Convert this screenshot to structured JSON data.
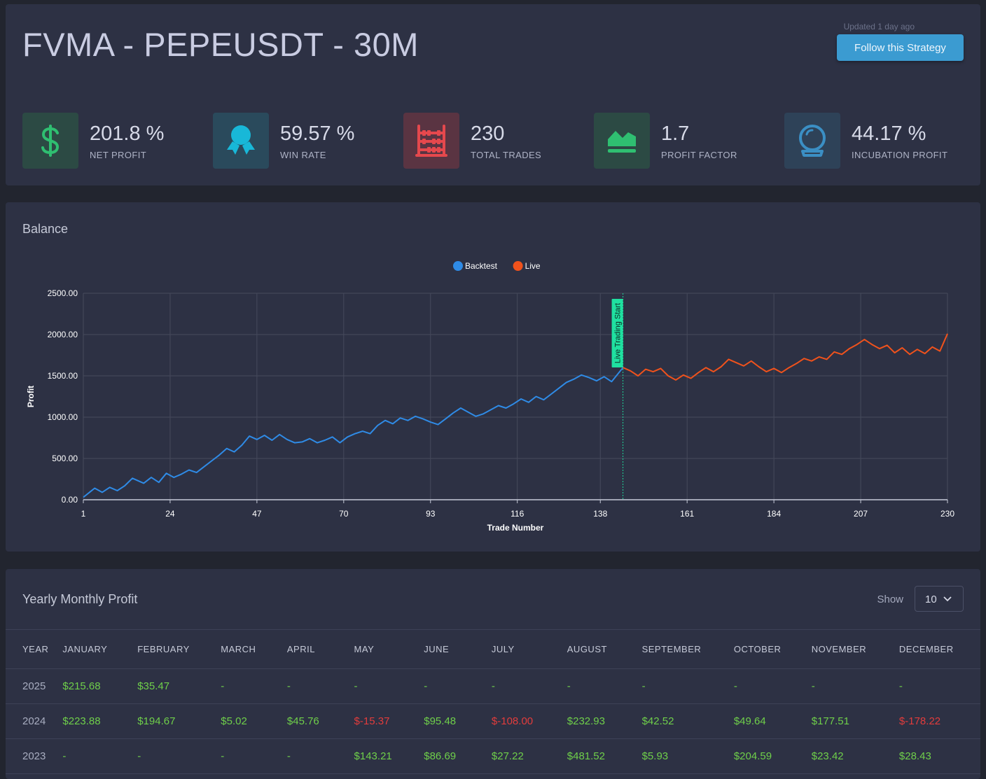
{
  "header": {
    "title": "FVMA - PEPEUSDT - 30M",
    "updated": "Updated 1 day ago",
    "follow_label": "Follow this Strategy"
  },
  "stats": [
    {
      "value": "201.8 %",
      "label": "NET PROFIT",
      "icon": "dollar-icon",
      "color": "#2fbf71",
      "bg": "#2c4a44"
    },
    {
      "value": "59.57 %",
      "label": "WIN RATE",
      "icon": "award-icon",
      "color": "#18b8d8",
      "bg": "#2a4a5c"
    },
    {
      "value": "230",
      "label": "TOTAL TRADES",
      "icon": "abacus-icon",
      "color": "#e5484d",
      "bg": "#5a3442"
    },
    {
      "value": "1.7",
      "label": "PROFIT FACTOR",
      "icon": "area-chart-icon",
      "color": "#2fbf71",
      "bg": "#2c4a44"
    },
    {
      "value": "44.17 %",
      "label": "INCUBATION PROFIT",
      "icon": "crystal-ball-icon",
      "color": "#3b8fc4",
      "bg": "#2e4258"
    }
  ],
  "balance": {
    "title": "Balance",
    "legend": [
      {
        "name": "Backtest",
        "color": "#2f8be6"
      },
      {
        "name": "Live",
        "color": "#f0521c"
      }
    ],
    "annotation": "Live Trading Start"
  },
  "chart_data": {
    "type": "line",
    "xlabel": "Trade Number",
    "ylabel": "Profit",
    "xlim": [
      1,
      230
    ],
    "ylim": [
      0,
      2500
    ],
    "x_ticks": [
      "1",
      "24",
      "47",
      "70",
      "93",
      "116",
      "138",
      "161",
      "184",
      "207",
      "230"
    ],
    "y_ticks": [
      "0.00",
      "500.00",
      "1000.00",
      "1500.00",
      "2000.00",
      "2500.00"
    ],
    "live_start_trade": 144,
    "series": [
      {
        "name": "Backtest",
        "color": "#2f8be6",
        "x": [
          1,
          4,
          6,
          8,
          10,
          12,
          14,
          17,
          19,
          21,
          23,
          25,
          27,
          29,
          31,
          33,
          35,
          37,
          39,
          41,
          43,
          45,
          47,
          49,
          51,
          53,
          55,
          57,
          59,
          61,
          63,
          65,
          67,
          69,
          71,
          73,
          75,
          77,
          79,
          81,
          83,
          85,
          87,
          89,
          91,
          93,
          95,
          97,
          99,
          101,
          103,
          105,
          107,
          109,
          111,
          113,
          115,
          117,
          119,
          121,
          123,
          125,
          127,
          129,
          131,
          133,
          135,
          137,
          139,
          141,
          144
        ],
        "values": [
          30,
          140,
          90,
          150,
          110,
          170,
          260,
          200,
          270,
          210,
          320,
          270,
          310,
          360,
          330,
          400,
          470,
          540,
          620,
          580,
          660,
          770,
          730,
          780,
          720,
          790,
          730,
          690,
          700,
          740,
          690,
          720,
          760,
          690,
          760,
          800,
          830,
          800,
          900,
          960,
          920,
          990,
          960,
          1010,
          980,
          940,
          910,
          980,
          1050,
          1110,
          1060,
          1010,
          1040,
          1090,
          1140,
          1110,
          1160,
          1220,
          1180,
          1250,
          1210,
          1280,
          1350,
          1420,
          1460,
          1510,
          1480,
          1440,
          1490,
          1430,
          1600
        ]
      },
      {
        "name": "Live",
        "color": "#f0521c",
        "x": [
          144,
          146,
          148,
          150,
          152,
          154,
          156,
          158,
          160,
          162,
          164,
          166,
          168,
          170,
          172,
          174,
          176,
          178,
          180,
          182,
          184,
          186,
          188,
          190,
          192,
          194,
          196,
          198,
          200,
          202,
          204,
          206,
          208,
          210,
          212,
          214,
          216,
          218,
          220,
          222,
          224,
          226,
          228,
          230
        ],
        "values": [
          1600,
          1560,
          1500,
          1580,
          1550,
          1590,
          1500,
          1450,
          1510,
          1470,
          1540,
          1600,
          1550,
          1610,
          1700,
          1660,
          1620,
          1680,
          1610,
          1550,
          1590,
          1540,
          1600,
          1650,
          1710,
          1680,
          1730,
          1700,
          1790,
          1760,
          1830,
          1880,
          1940,
          1880,
          1830,
          1870,
          1780,
          1840,
          1760,
          1820,
          1770,
          1850,
          1800,
          2010
        ]
      }
    ]
  },
  "profit_table": {
    "title": "Yearly Monthly Profit",
    "show_label": "Show",
    "show_value": "10",
    "headers": [
      "YEAR",
      "JANUARY",
      "FEBRUARY",
      "MARCH",
      "APRIL",
      "MAY",
      "JUNE",
      "JULY",
      "AUGUST",
      "SEPTEMBER",
      "OCTOBER",
      "NOVEMBER",
      "DECEMBER"
    ],
    "rows": [
      [
        "2025",
        "$215.68",
        "$35.47",
        "-",
        "-",
        "-",
        "-",
        "-",
        "-",
        "-",
        "-",
        "-",
        "-"
      ],
      [
        "2024",
        "$223.88",
        "$194.67",
        "$5.02",
        "$45.76",
        "$-15.37",
        "$95.48",
        "$-108.00",
        "$232.93",
        "$42.52",
        "$49.64",
        "$177.51",
        "$-178.22"
      ],
      [
        "2023",
        "-",
        "-",
        "-",
        "-",
        "$143.21",
        "$86.69",
        "$27.22",
        "$481.52",
        "$5.93",
        "$204.59",
        "$23.42",
        "$28.43"
      ]
    ]
  }
}
